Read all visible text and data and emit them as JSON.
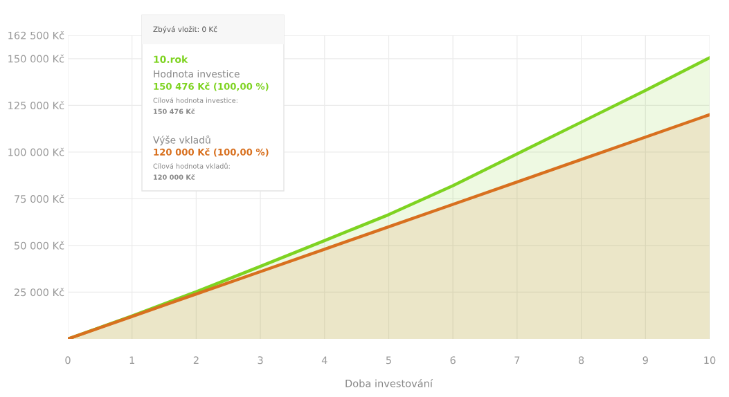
{
  "chart_data": {
    "type": "area",
    "x": [
      0,
      1,
      2,
      3,
      4,
      5,
      6,
      7,
      8,
      9,
      10
    ],
    "series": [
      {
        "color": "#7ed321",
        "values": [
          0,
          12300,
          25200,
          38800,
          52600,
          66500,
          82000,
          99000,
          116000,
          133000,
          150476
        ]
      },
      {
        "color": "#d8701f",
        "values": [
          0,
          12000,
          24000,
          36000,
          48000,
          60000,
          72000,
          84000,
          96000,
          108000,
          120000
        ]
      }
    ],
    "xlabel": "Doba investování",
    "xlim": [
      0,
      10
    ],
    "xticks": [
      0,
      1,
      2,
      3,
      4,
      5,
      6,
      7,
      8,
      9,
      10
    ],
    "ylim": [
      0,
      162500
    ],
    "yticks": [
      {
        "value": 25000,
        "label": "25 000 Kč"
      },
      {
        "value": 50000,
        "label": "50 000 Kč"
      },
      {
        "value": 75000,
        "label": "75 000 Kč"
      },
      {
        "value": 100000,
        "label": "100 000 Kč"
      },
      {
        "value": 125000,
        "label": "125 000 Kč"
      },
      {
        "value": 150000,
        "label": "150 000 Kč"
      },
      {
        "value": 162500,
        "label": "162 500 Kč"
      }
    ],
    "grid": true,
    "annotations": [
      "Zbývá vložit: 0 Kč",
      "10.rok",
      "Hodnota investice",
      "150 476 Kč (100,00 %)",
      "Cílová hodnota investice:",
      "150 476 Kč",
      "Výše vkladů",
      "120 000 Kč (100,00 %)",
      "Cílová hodnota vkladů:",
      "120 000 Kč"
    ]
  }
}
